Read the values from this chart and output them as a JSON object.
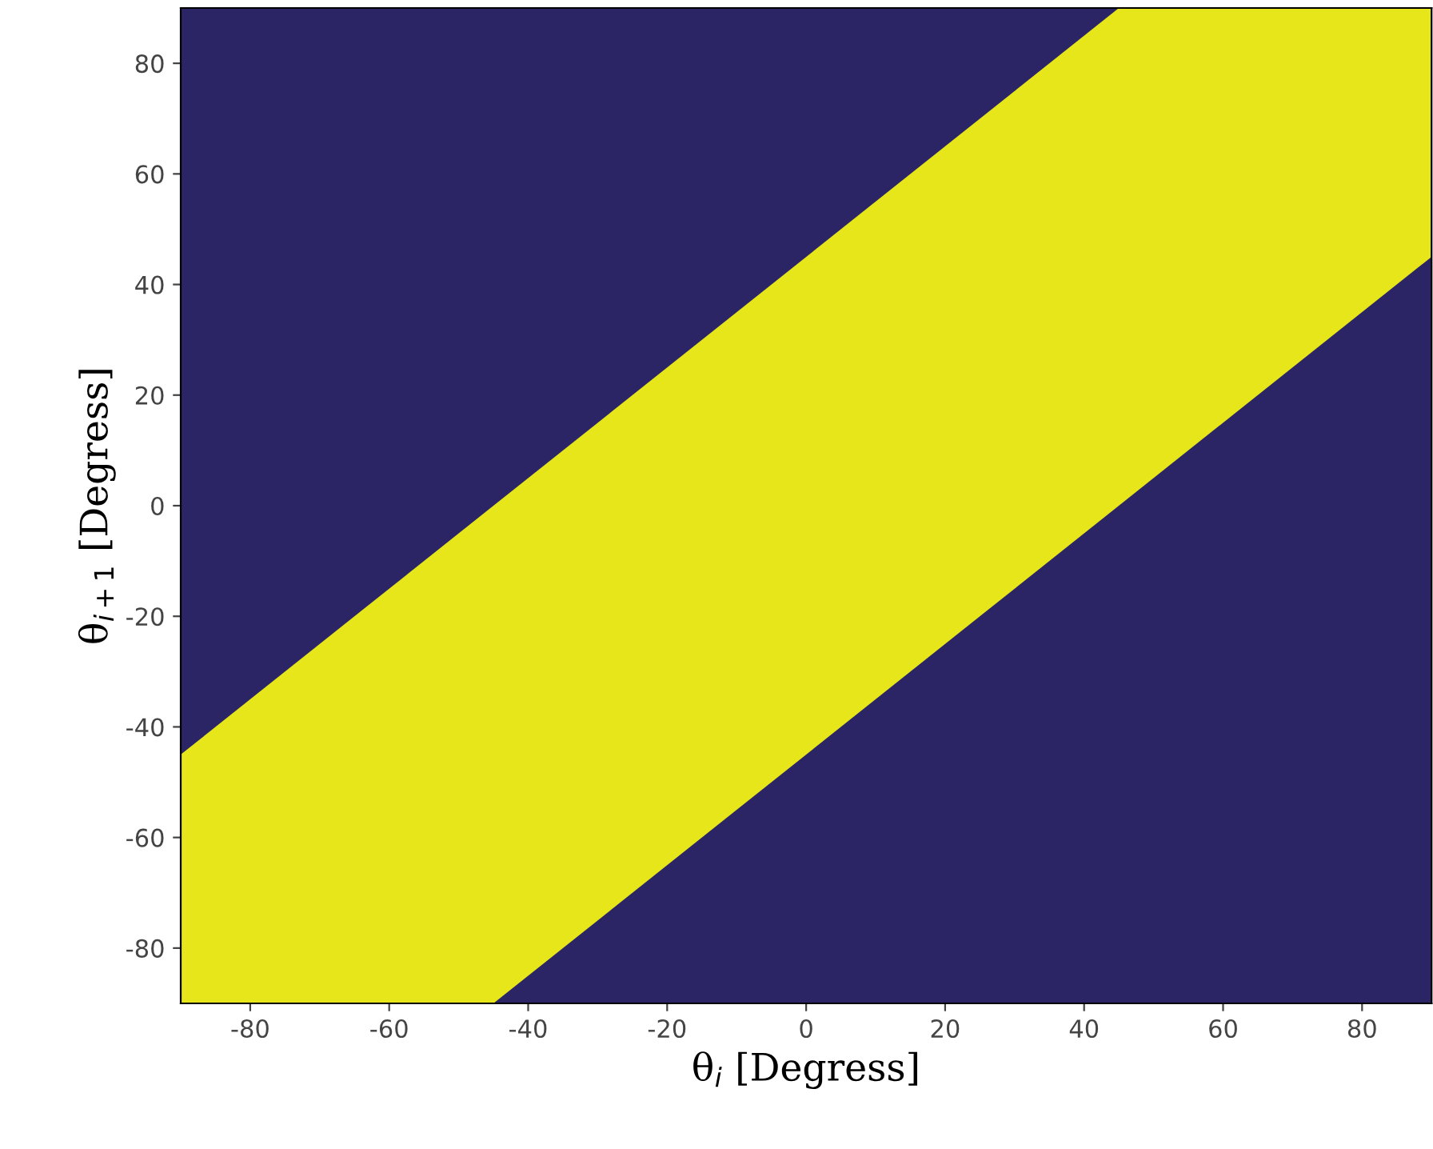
{
  "chart_data": {
    "type": "line",
    "xlabel": "θ$_{i}$ [Degress]",
    "ylabel": "θ$_{i+1}$ [Degress]",
    "series": [
      {
        "color": "#e6e61a",
        "x": [
          -90,
          -45,
          45,
          90
        ],
        "values": [
          null,
          null,
          null,
          null
        ],
        "lower": [
          -90,
          -90,
          0,
          45
        ],
        "upper": [
          -45,
          0,
          90,
          90
        ]
      }
    ],
    "xlim": [
      -90,
      90
    ],
    "ylim": [
      -90,
      90
    ],
    "xticks": [
      -80,
      -60,
      -40,
      -20,
      0,
      20,
      40,
      60,
      80
    ],
    "yticks": [
      -80,
      -60,
      -40,
      -20,
      0,
      20,
      40,
      60,
      80
    ],
    "grid": false,
    "legend": false
  }
}
